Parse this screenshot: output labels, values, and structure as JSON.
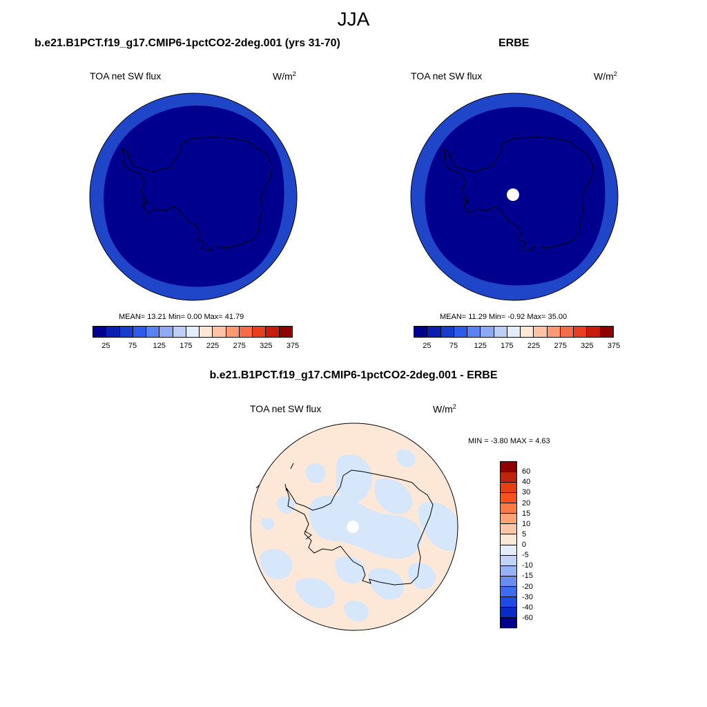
{
  "main_title": "JJA",
  "panels": {
    "model": {
      "title": "b.e21.B1PCT.f19_g17.CMIP6-1pctCO2-2deg.001 (yrs 31-70)",
      "field": "TOA net SW flux",
      "units": "W/m",
      "units_exp": "2",
      "stats": "MEAN=  13.21  Min=   0.00  Max=  41.79",
      "fill_outer": "#1f45c8",
      "fill_inner": "#00008f"
    },
    "obs": {
      "title": "ERBE",
      "field": "TOA net SW flux",
      "units": "W/m",
      "units_exp": "2",
      "stats": "MEAN=  11.29  Min=  -0.92  Max=  35.00",
      "fill_outer": "#1f45c8",
      "fill_inner": "#00008f"
    },
    "diff": {
      "title": "b.e21.B1PCT.f19_g17.CMIP6-1pctCO2-2deg.001 - ERBE",
      "field": "TOA net SW flux",
      "units": "W/m",
      "units_exp": "2",
      "stats": "MIN =  -3.80 MAX =   4.63",
      "fill_main": "#fde8d8",
      "fill_patch": "#d6e7fb"
    }
  },
  "colorbar_abs": {
    "colors": [
      "#00008f",
      "#0a1fb0",
      "#1a3ccc",
      "#2e5cea",
      "#5a82f0",
      "#8eaaf2",
      "#bcd0f6",
      "#e4eefb",
      "#fde8d8",
      "#fcc3a4",
      "#f99a74",
      "#f46c4b",
      "#e83e22",
      "#c71b0e",
      "#8f0000"
    ],
    "tick_labels": [
      "25",
      "75",
      "125",
      "175",
      "225",
      "275",
      "325",
      "375"
    ]
  },
  "colorbar_diff": {
    "colors": [
      "#8f0000",
      "#c0230e",
      "#e83e14",
      "#f8521e",
      "#fb7a46",
      "#fca274",
      "#fdc6a6",
      "#fde8d8",
      "#e4eefb",
      "#c0d4f8",
      "#94b2f4",
      "#6a8ef0",
      "#3e6cf0",
      "#1e4ae6",
      "#0a2cc6",
      "#00008f"
    ],
    "tick_labels": [
      "60",
      "40",
      "30",
      "20",
      "15",
      "10",
      "5",
      "0",
      "-5",
      "-10",
      "-15",
      "-20",
      "-30",
      "-40",
      "-60"
    ]
  }
}
